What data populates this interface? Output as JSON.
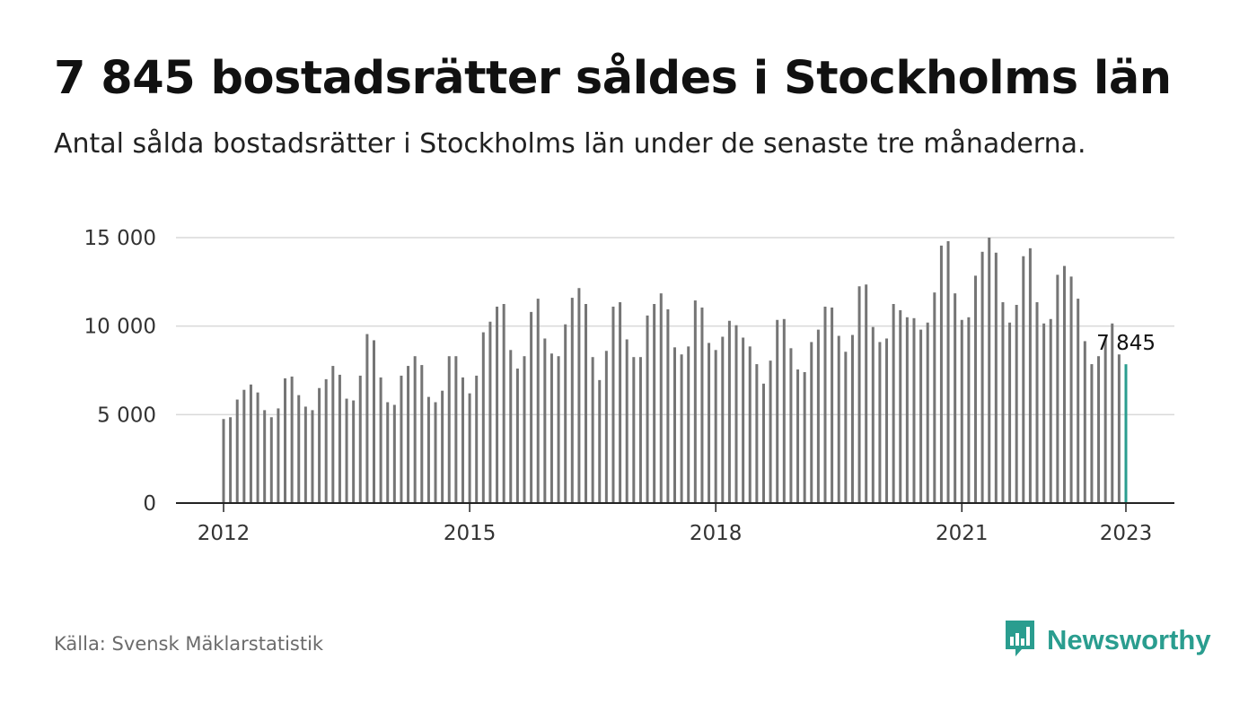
{
  "title": "7 845 bostadsrätter såldes i Stockholms län",
  "subtitle": "Antal sålda bostadsrätter i Stockholms län under de senaste tre månaderna.",
  "source": "Källa: Svensk Mäklarstatistik",
  "brand": {
    "name": "Newsworthy",
    "icon": "bar-chart-speech-icon",
    "color": "#2a9d8f"
  },
  "chart_data": {
    "type": "bar",
    "title": "",
    "xlabel": "",
    "ylabel": "",
    "ylim": [
      0,
      15000
    ],
    "yticks": [
      {
        "value": 0,
        "label": "0"
      },
      {
        "value": 5000,
        "label": "5 000"
      },
      {
        "value": 10000,
        "label": "10 000"
      },
      {
        "value": 15000,
        "label": "15 000"
      }
    ],
    "xticks": [
      {
        "index": 0,
        "label": "2012"
      },
      {
        "index": 36,
        "label": "2015"
      },
      {
        "index": 72,
        "label": "2018"
      },
      {
        "index": 108,
        "label": "2021"
      },
      {
        "index": 132,
        "label": "2023"
      }
    ],
    "grid": true,
    "bar_color": "#757575",
    "highlight_color": "#2a9d8f",
    "highlight_index": 132,
    "highlight_label": "7 845",
    "values": [
      4750,
      4850,
      5850,
      6400,
      6700,
      6250,
      5250,
      4850,
      5350,
      7050,
      7150,
      6100,
      5450,
      5250,
      6500,
      7000,
      7750,
      7250,
      5900,
      5800,
      7200,
      9550,
      9200,
      7100,
      5700,
      5550,
      7200,
      7750,
      8300,
      7800,
      6000,
      5700,
      6350,
      8300,
      8300,
      7100,
      6200,
      7200,
      9650,
      10250,
      11100,
      11250,
      8650,
      7600,
      8300,
      10800,
      11550,
      9300,
      8450,
      8300,
      10100,
      11600,
      12150,
      11250,
      8250,
      6950,
      8600,
      11100,
      11350,
      9250,
      8250,
      8250,
      10600,
      11250,
      11850,
      10950,
      8800,
      8400,
      8850,
      11450,
      11050,
      9050,
      8650,
      9400,
      10300,
      10050,
      9350,
      8850,
      7850,
      6750,
      8050,
      10350,
      10400,
      8750,
      7550,
      7400,
      9100,
      9800,
      11100,
      11050,
      9450,
      8550,
      9500,
      12250,
      12350,
      9950,
      9100,
      9300,
      11250,
      10900,
      10500,
      10450,
      9800,
      10200,
      11900,
      14550,
      14800,
      11850,
      10350,
      10500,
      12850,
      14200,
      15000,
      14150,
      11350,
      10200,
      11200,
      13950,
      14400,
      11350,
      10150,
      10400,
      12900,
      13400,
      12800,
      11550,
      9150,
      7850,
      8300,
      9300,
      10150,
      8400,
      7845
    ]
  }
}
